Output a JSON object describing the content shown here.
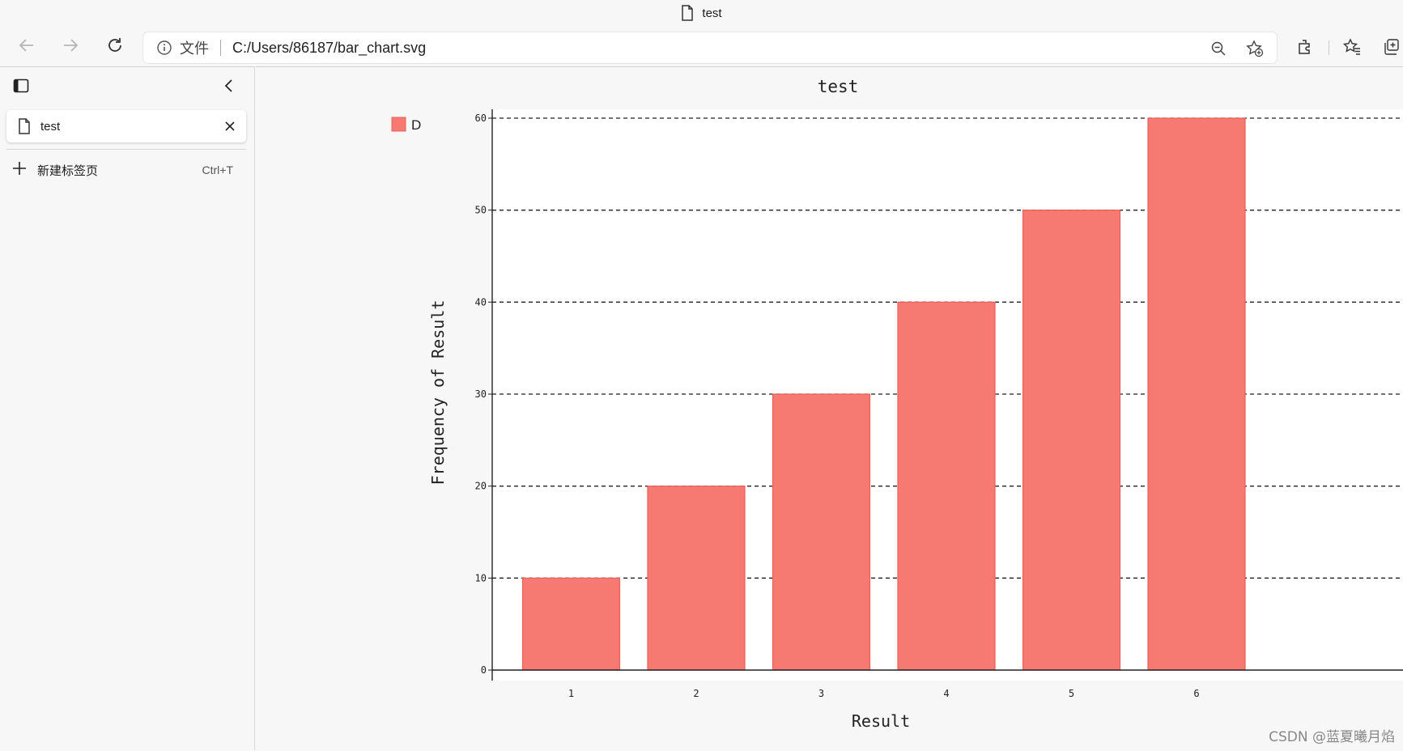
{
  "window": {
    "title": "test"
  },
  "address_bar": {
    "scheme_label": "文件",
    "url": "C:/Users/86187/bar_chart.svg"
  },
  "sidebar": {
    "tab": {
      "label": "test"
    },
    "new_tab": {
      "label": "新建标签页",
      "shortcut": "Ctrl+T"
    }
  },
  "colors": {
    "bar_fill": "#f67a71",
    "bar_stroke": "#e8615a"
  },
  "icons": [
    "back-arrow-icon",
    "forward-arrow-icon",
    "refresh-icon",
    "info-icon",
    "zoom-out-icon",
    "add-favorite-icon",
    "extensions-icon",
    "favorites-icon",
    "collections-icon",
    "document-icon",
    "sidebar-panel-icon",
    "collapse-chevron-icon",
    "close-icon",
    "plus-icon"
  ],
  "chart_data": {
    "type": "bar",
    "title": "test",
    "xlabel": "Result",
    "ylabel": "Frequency of Result",
    "categories": [
      "1",
      "2",
      "3",
      "4",
      "5",
      "6"
    ],
    "series": [
      {
        "name": "D",
        "values": [
          10,
          20,
          30,
          40,
          50,
          60
        ]
      }
    ],
    "ylim": [
      0,
      60
    ],
    "yticks": [
      "0",
      "10",
      "20",
      "30",
      "40",
      "50",
      "60"
    ],
    "grid": "horizontal-dashed",
    "legend": "top-left"
  },
  "watermark": "CSDN @蓝夏曦月焰"
}
